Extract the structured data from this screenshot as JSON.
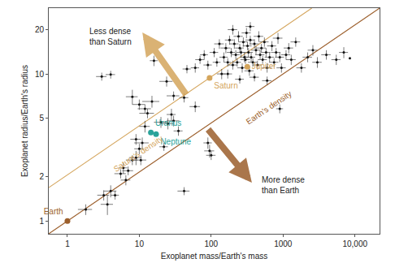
{
  "chart_data": {
    "type": "scatter",
    "log": true,
    "grid": false,
    "x_label": "Exoplanet mass/Earth's mass",
    "y_label": "Exoplanet radius/Earth's radius",
    "xlim": [
      0.55,
      22000
    ],
    "ylim": [
      0.82,
      28
    ],
    "xticks": [
      1,
      10,
      100,
      1000,
      {
        "value": 10000,
        "label": "10,000"
      }
    ],
    "yticks": [
      1,
      2,
      5,
      10,
      20
    ],
    "annotations": [
      {
        "text": "Less dense\nthan Saturn"
      },
      {
        "text": "More dense\nthan Earth"
      }
    ],
    "series": [
      {
        "name": "Saturn's density",
        "type": "line",
        "color": "#d4a55c",
        "x": [
          0.55,
          2510
        ],
        "values": [
          1.69,
          28
        ]
      },
      {
        "name": "Earth's density",
        "type": "line",
        "color": "#9c5f2c",
        "x": [
          0.55,
          22000
        ],
        "values": [
          0.82,
          28
        ]
      },
      {
        "type": "scatter",
        "marker": "circle",
        "color": "#111111",
        "x": [
          1.8,
          3.2,
          3.6,
          4.0,
          4.6,
          5.5,
          6.0,
          7.0,
          6.5,
          8.0,
          9.0,
          10.5,
          10,
          11,
          9,
          12,
          13,
          8,
          10,
          12,
          15,
          16,
          3.0,
          4.0,
          20,
          22,
          25,
          30,
          35,
          28,
          42,
          95,
          100,
          90,
          24,
          30,
          42,
          46,
          60,
          70,
          80,
          90,
          110,
          120,
          130,
          140,
          900,
          60,
          150,
          160,
          170,
          180,
          190,
          200,
          210,
          220,
          230,
          240,
          250,
          260,
          270,
          280,
          290,
          300,
          310,
          320,
          330,
          340,
          350,
          360,
          380,
          400,
          420,
          440,
          460,
          480,
          500,
          520,
          550,
          580,
          600,
          650,
          700,
          750,
          800,
          850,
          900,
          950,
          200,
          350,
          400,
          600,
          250,
          170,
          1100,
          1200,
          1300,
          1500,
          1800,
          2200,
          2600,
          3000,
          4000,
          5500,
          7000,
          8500
        ],
        "values": [
          1.2,
          1.5,
          1.3,
          1.6,
          1.5,
          2.1,
          2.3,
          2.2,
          1.9,
          2.6,
          2.7,
          2.6,
          3.1,
          3.4,
          3.6,
          4.4,
          5.4,
          7.0,
          6.2,
          5.8,
          6.5,
          12.3,
          9.6,
          9.9,
          4.7,
          3.2,
          4.6,
          4.8,
          4.1,
          5.3,
          1.6,
          3.0,
          2.8,
          3.4,
          8.9,
          7.1,
          6.9,
          10.8,
          11,
          12.5,
          13.5,
          11.5,
          14,
          12,
          16,
          10,
          5.8,
          6.0,
          13,
          15,
          12,
          17,
          14,
          11.5,
          16,
          13.5,
          12,
          18,
          15,
          14,
          11,
          16.5,
          13,
          12.5,
          19,
          15.5,
          14,
          10.5,
          17,
          13,
          12,
          16,
          14.5,
          11.5,
          18,
          13.5,
          15,
          12.5,
          16.5,
          14,
          11,
          13,
          15.5,
          12,
          14,
          17.5,
          13,
          11,
          20,
          21,
          9.5,
          9,
          9.2,
          10,
          13.5,
          15,
          12.5,
          16.5,
          11,
          13,
          14.5,
          12,
          13.5,
          12.5,
          14,
          12.8
        ],
        "x_err": [
          0.4,
          0.6,
          0.7,
          0.8,
          0.6,
          1.0,
          0.8,
          1.2,
          1.0,
          1.5,
          1.8,
          2.0,
          1.5,
          2.5,
          1.5,
          2.0,
          3.0,
          1.5,
          2.0,
          2.5,
          4.0,
          2.0,
          0.5,
          0.6,
          4,
          3,
          5,
          6,
          5,
          4,
          8,
          15,
          15,
          12,
          5,
          6,
          6,
          6,
          8,
          10,
          10,
          12,
          15,
          15,
          20,
          20,
          100,
          10,
          20,
          25,
          20,
          25,
          25,
          30,
          30,
          30,
          30,
          35,
          35,
          35,
          40,
          40,
          40,
          45,
          45,
          45,
          50,
          50,
          50,
          50,
          55,
          60,
          60,
          65,
          70,
          70,
          75,
          75,
          80,
          85,
          90,
          95,
          100,
          110,
          120,
          130,
          130,
          140,
          30,
          50,
          60,
          90,
          35,
          25,
          160,
          180,
          200,
          230,
          270,
          330,
          400,
          450,
          600,
          800,
          1000,
          0
        ],
        "y_err": [
          0.1,
          0.12,
          0.2,
          0.15,
          0.1,
          0.15,
          0.2,
          0.15,
          0.15,
          0.2,
          0.3,
          0.2,
          0.25,
          0.3,
          0.3,
          0.4,
          0.4,
          0.8,
          0.5,
          0.4,
          0.6,
          1.0,
          0.6,
          0.6,
          0.4,
          0.2,
          0.4,
          0.4,
          0.3,
          0.5,
          0.1,
          0.3,
          0.2,
          0.3,
          0.7,
          0.5,
          0.5,
          0.7,
          0.8,
          0.8,
          1.0,
          0.8,
          1.0,
          0.8,
          1.2,
          0.8,
          0.4,
          0.5,
          1.0,
          1.2,
          0.8,
          1.2,
          1.0,
          0.8,
          1.2,
          1.0,
          0.8,
          1.5,
          1.0,
          1.0,
          0.8,
          1.2,
          1.0,
          0.8,
          1.5,
          1.0,
          1.0,
          0.8,
          1.2,
          1.0,
          0.8,
          1.2,
          1.0,
          0.8,
          1.5,
          1.0,
          1.0,
          0.8,
          1.2,
          1.0,
          0.8,
          1.0,
          1.2,
          0.8,
          1.0,
          1.5,
          1.0,
          0.8,
          1.5,
          1.5,
          0.6,
          0.6,
          0.6,
          0.7,
          1.0,
          1.2,
          1.0,
          1.2,
          0.8,
          1.0,
          1.2,
          1.0,
          1.0,
          1.0,
          1.2,
          0
        ]
      },
      {
        "name": "Earth",
        "type": "scatter",
        "marker": "circle",
        "color": "#9c5f2c",
        "x": [
          1
        ],
        "values": [
          1
        ]
      },
      {
        "name": "Saturn",
        "type": "scatter",
        "marker": "circle",
        "color": "#d4a55c",
        "x": [
          95
        ],
        "values": [
          9.4
        ]
      },
      {
        "name": "Jupiter",
        "type": "scatter",
        "marker": "circle",
        "color": "#d4a55c",
        "x": [
          318
        ],
        "values": [
          11.2
        ]
      },
      {
        "name": "Uranus",
        "type": "scatter",
        "marker": "circle",
        "color": "#2aa39a",
        "x": [
          14.5
        ],
        "values": [
          4.0
        ]
      },
      {
        "name": "Neptune",
        "type": "scatter",
        "marker": "circle",
        "color": "#2aa39a",
        "x": [
          17.1
        ],
        "values": [
          3.9
        ]
      }
    ]
  }
}
